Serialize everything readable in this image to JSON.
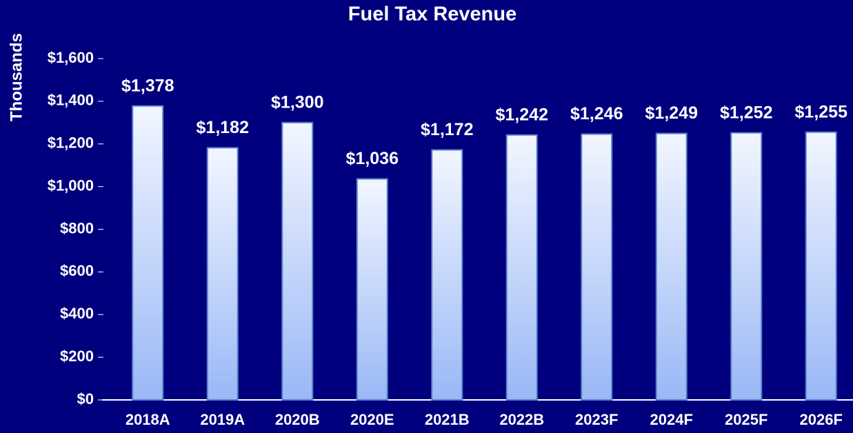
{
  "chart_data": {
    "type": "bar",
    "title": "Fuel Tax Revenue",
    "y_label": "Thousands",
    "categories": [
      "2018A",
      "2019A",
      "2020B",
      "2020E",
      "2021B",
      "2022B",
      "2023F",
      "2024F",
      "2025F",
      "2026F"
    ],
    "values": [
      1378,
      1182,
      1300,
      1036,
      1172,
      1242,
      1246,
      1249,
      1252,
      1255
    ],
    "value_labels": [
      "$1,378",
      "$1,182",
      "$1,300",
      "$1,036",
      "$1,172",
      "$1,242",
      "$1,246",
      "$1,249",
      "$1,252",
      "$1,255"
    ],
    "color": "#9ab8f6",
    "ylim": [
      0,
      1600
    ],
    "yticks": [
      {
        "value": 0,
        "label": "$0"
      },
      {
        "value": 200,
        "label": "$200"
      },
      {
        "value": 400,
        "label": "$400"
      },
      {
        "value": 600,
        "label": "$600"
      },
      {
        "value": 800,
        "label": "$800"
      },
      {
        "value": 1000,
        "label": "$1,000"
      },
      {
        "value": 1200,
        "label": "$1,200"
      },
      {
        "value": 1400,
        "label": "$1,400"
      },
      {
        "value": 1600,
        "label": "$1,600"
      }
    ],
    "grid": false
  }
}
